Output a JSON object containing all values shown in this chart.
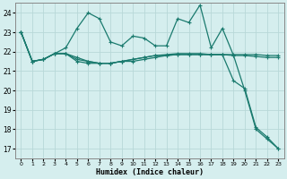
{
  "xlabel": "Humidex (Indice chaleur)",
  "ylabel": "",
  "xlim": [
    -0.5,
    23.5
  ],
  "ylim": [
    16.5,
    24.5
  ],
  "yticks": [
    17,
    18,
    19,
    20,
    21,
    22,
    23,
    24
  ],
  "xticks": [
    0,
    1,
    2,
    3,
    4,
    5,
    6,
    7,
    8,
    9,
    10,
    11,
    12,
    13,
    14,
    15,
    16,
    17,
    18,
    19,
    20,
    21,
    22,
    23
  ],
  "background_color": "#d5eeee",
  "grid_color": "#b8d8d8",
  "line_color": "#1a7a6e",
  "lines": [
    [
      23.0,
      21.5,
      21.6,
      21.9,
      21.9,
      21.7,
      21.5,
      21.4,
      21.4,
      21.5,
      21.6,
      21.7,
      21.8,
      21.85,
      21.9,
      21.9,
      21.9,
      21.85,
      21.85,
      21.85,
      21.85,
      21.85,
      21.8,
      21.8
    ],
    [
      23.0,
      21.5,
      21.6,
      21.9,
      22.2,
      23.2,
      24.0,
      23.7,
      22.5,
      22.3,
      22.8,
      22.7,
      22.3,
      22.3,
      23.7,
      23.5,
      24.4,
      22.2,
      23.2,
      21.8,
      20.0,
      18.0,
      17.5,
      17.0
    ],
    [
      23.0,
      21.5,
      21.6,
      21.9,
      21.9,
      21.6,
      21.5,
      21.4,
      21.4,
      21.5,
      21.6,
      21.7,
      21.8,
      21.8,
      21.85,
      21.85,
      21.85,
      21.85,
      21.85,
      20.5,
      20.1,
      18.1,
      17.6,
      17.0
    ],
    [
      23.0,
      21.5,
      21.6,
      21.9,
      21.9,
      21.5,
      21.4,
      21.4,
      21.4,
      21.5,
      21.5,
      21.6,
      21.7,
      21.8,
      21.85,
      21.85,
      21.85,
      21.85,
      21.85,
      21.8,
      21.8,
      21.75,
      21.7,
      21.7
    ]
  ]
}
